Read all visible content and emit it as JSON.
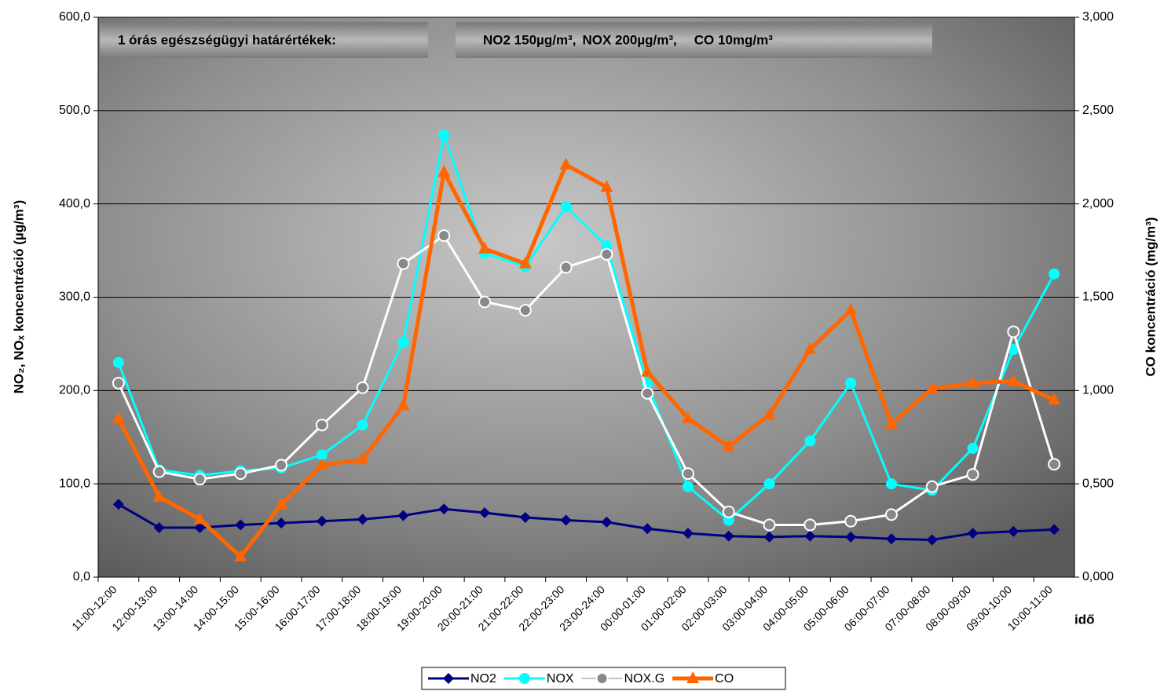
{
  "chart_data": {
    "type": "line",
    "annotations": [
      "1  órás egészségügyi határértékek:",
      "NO2  150µg/m³,",
      "NOX   200µg/m³,",
      "CO  10mg/m³"
    ],
    "annotation_colors": [
      "#000000",
      "#000080",
      "#00ffff",
      "#ff6600"
    ],
    "ylabel": "NO₂, NOₓ koncentráció (µg/m³)",
    "y2label": "CO koncentráció (mg/m³)",
    "xlabel": "idő",
    "categories": [
      "11:00-12:00",
      "12:00-13:00",
      "13:00-14:00",
      "14:00-15:00",
      "15:00-16:00",
      "16:00-17:00",
      "17:00-18:00",
      "18:00-19:00",
      "19:00-20:00",
      "20:00-21:00",
      "21:00-22:00",
      "22:00-23:00",
      "23:00-24:00",
      "00:00-01:00",
      "01:00-02:00",
      "02:00-03:00",
      "03:00-04:00",
      "04:00-05:00",
      "05:00-06:00",
      "06:00-07:00",
      "07:00-08:00",
      "08:00-09:00",
      "09:00-10:00",
      "10:00-11:00"
    ],
    "series": [
      {
        "name": "NO2",
        "color": "#000080",
        "marker": "diamond",
        "values": [
          78,
          53,
          53,
          56,
          58,
          60,
          62,
          66,
          73,
          69,
          64,
          61,
          59,
          52,
          47,
          44,
          43,
          44,
          43,
          41,
          40,
          47,
          49,
          51
        ]
      },
      {
        "name": "NOX",
        "color": "#00ffff",
        "marker": "circle",
        "values": [
          230,
          115,
          109,
          114,
          117,
          131,
          163,
          252,
          474,
          347,
          333,
          397,
          355,
          207,
          97,
          61,
          100,
          146,
          208,
          100,
          93,
          138,
          244,
          325
        ]
      },
      {
        "name": "NOX.G",
        "color": "#ffffff",
        "marker": "hollow-circle",
        "values": [
          208,
          113,
          105,
          111,
          120,
          163,
          203,
          336,
          366,
          295,
          286,
          332,
          346,
          197,
          111,
          70,
          56,
          56,
          60,
          67,
          97,
          110,
          263,
          121
        ]
      },
      {
        "name": "CO",
        "color": "#ff6600",
        "marker": "triangle",
        "axis": "y2",
        "values": [
          0.85,
          0.43,
          0.31,
          0.11,
          0.39,
          0.6,
          0.63,
          0.92,
          2.17,
          1.76,
          1.68,
          2.21,
          2.09,
          1.1,
          0.85,
          0.7,
          0.87,
          1.22,
          1.43,
          0.82,
          1.01,
          1.04,
          1.05,
          0.95
        ]
      }
    ],
    "ylim": [
      0,
      600
    ],
    "yticks": [
      {
        "value": 0,
        "label": "0,0"
      },
      {
        "value": 100,
        "label": "100,0"
      },
      {
        "value": 200,
        "label": "200,0"
      },
      {
        "value": 300,
        "label": "300,0"
      },
      {
        "value": 400,
        "label": "400,0"
      },
      {
        "value": 500,
        "label": "500,0"
      },
      {
        "value": 600,
        "label": "600,0"
      }
    ],
    "y2lim": [
      0,
      3
    ],
    "y2ticks": [
      {
        "value": 0,
        "label": "0,000"
      },
      {
        "value": 0.5,
        "label": "0,500"
      },
      {
        "value": 1,
        "label": "1,000"
      },
      {
        "value": 1.5,
        "label": "1,500"
      },
      {
        "value": 2,
        "label": "2,000"
      },
      {
        "value": 2.5,
        "label": "2,500"
      },
      {
        "value": 3,
        "label": "3,000"
      }
    ],
    "grid": true,
    "legend": "bottom"
  }
}
